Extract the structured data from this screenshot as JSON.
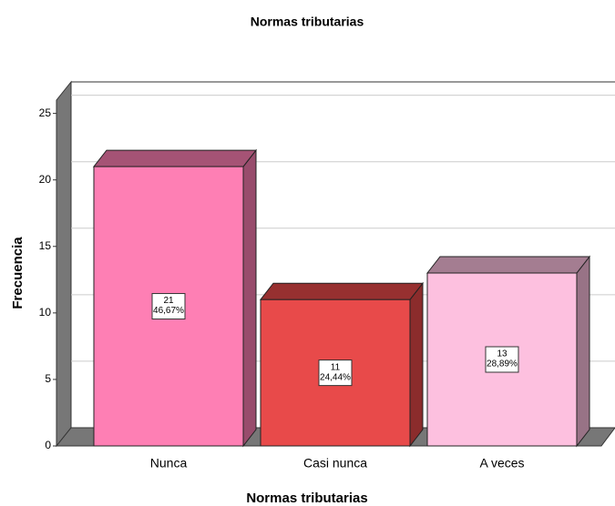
{
  "chart_data": {
    "type": "bar3d",
    "title": "Normas tributarias",
    "x_label": "Normas tributarias",
    "y_label": "Frecuencia",
    "categories": [
      "Nunca",
      "Casi nunca",
      "A veces"
    ],
    "values": [
      21,
      11,
      13
    ],
    "percentages": [
      46.67,
      24.44,
      28.89
    ],
    "percentage_labels": [
      "46,67%",
      "24,44%",
      "28,89%"
    ],
    "colors": [
      "#fe7fb4",
      "#e84a4a",
      "#fdc0df"
    ],
    "ylim": [
      0,
      26
    ],
    "yticks": [
      0,
      5,
      10,
      15,
      20,
      25
    ],
    "grid": true
  }
}
